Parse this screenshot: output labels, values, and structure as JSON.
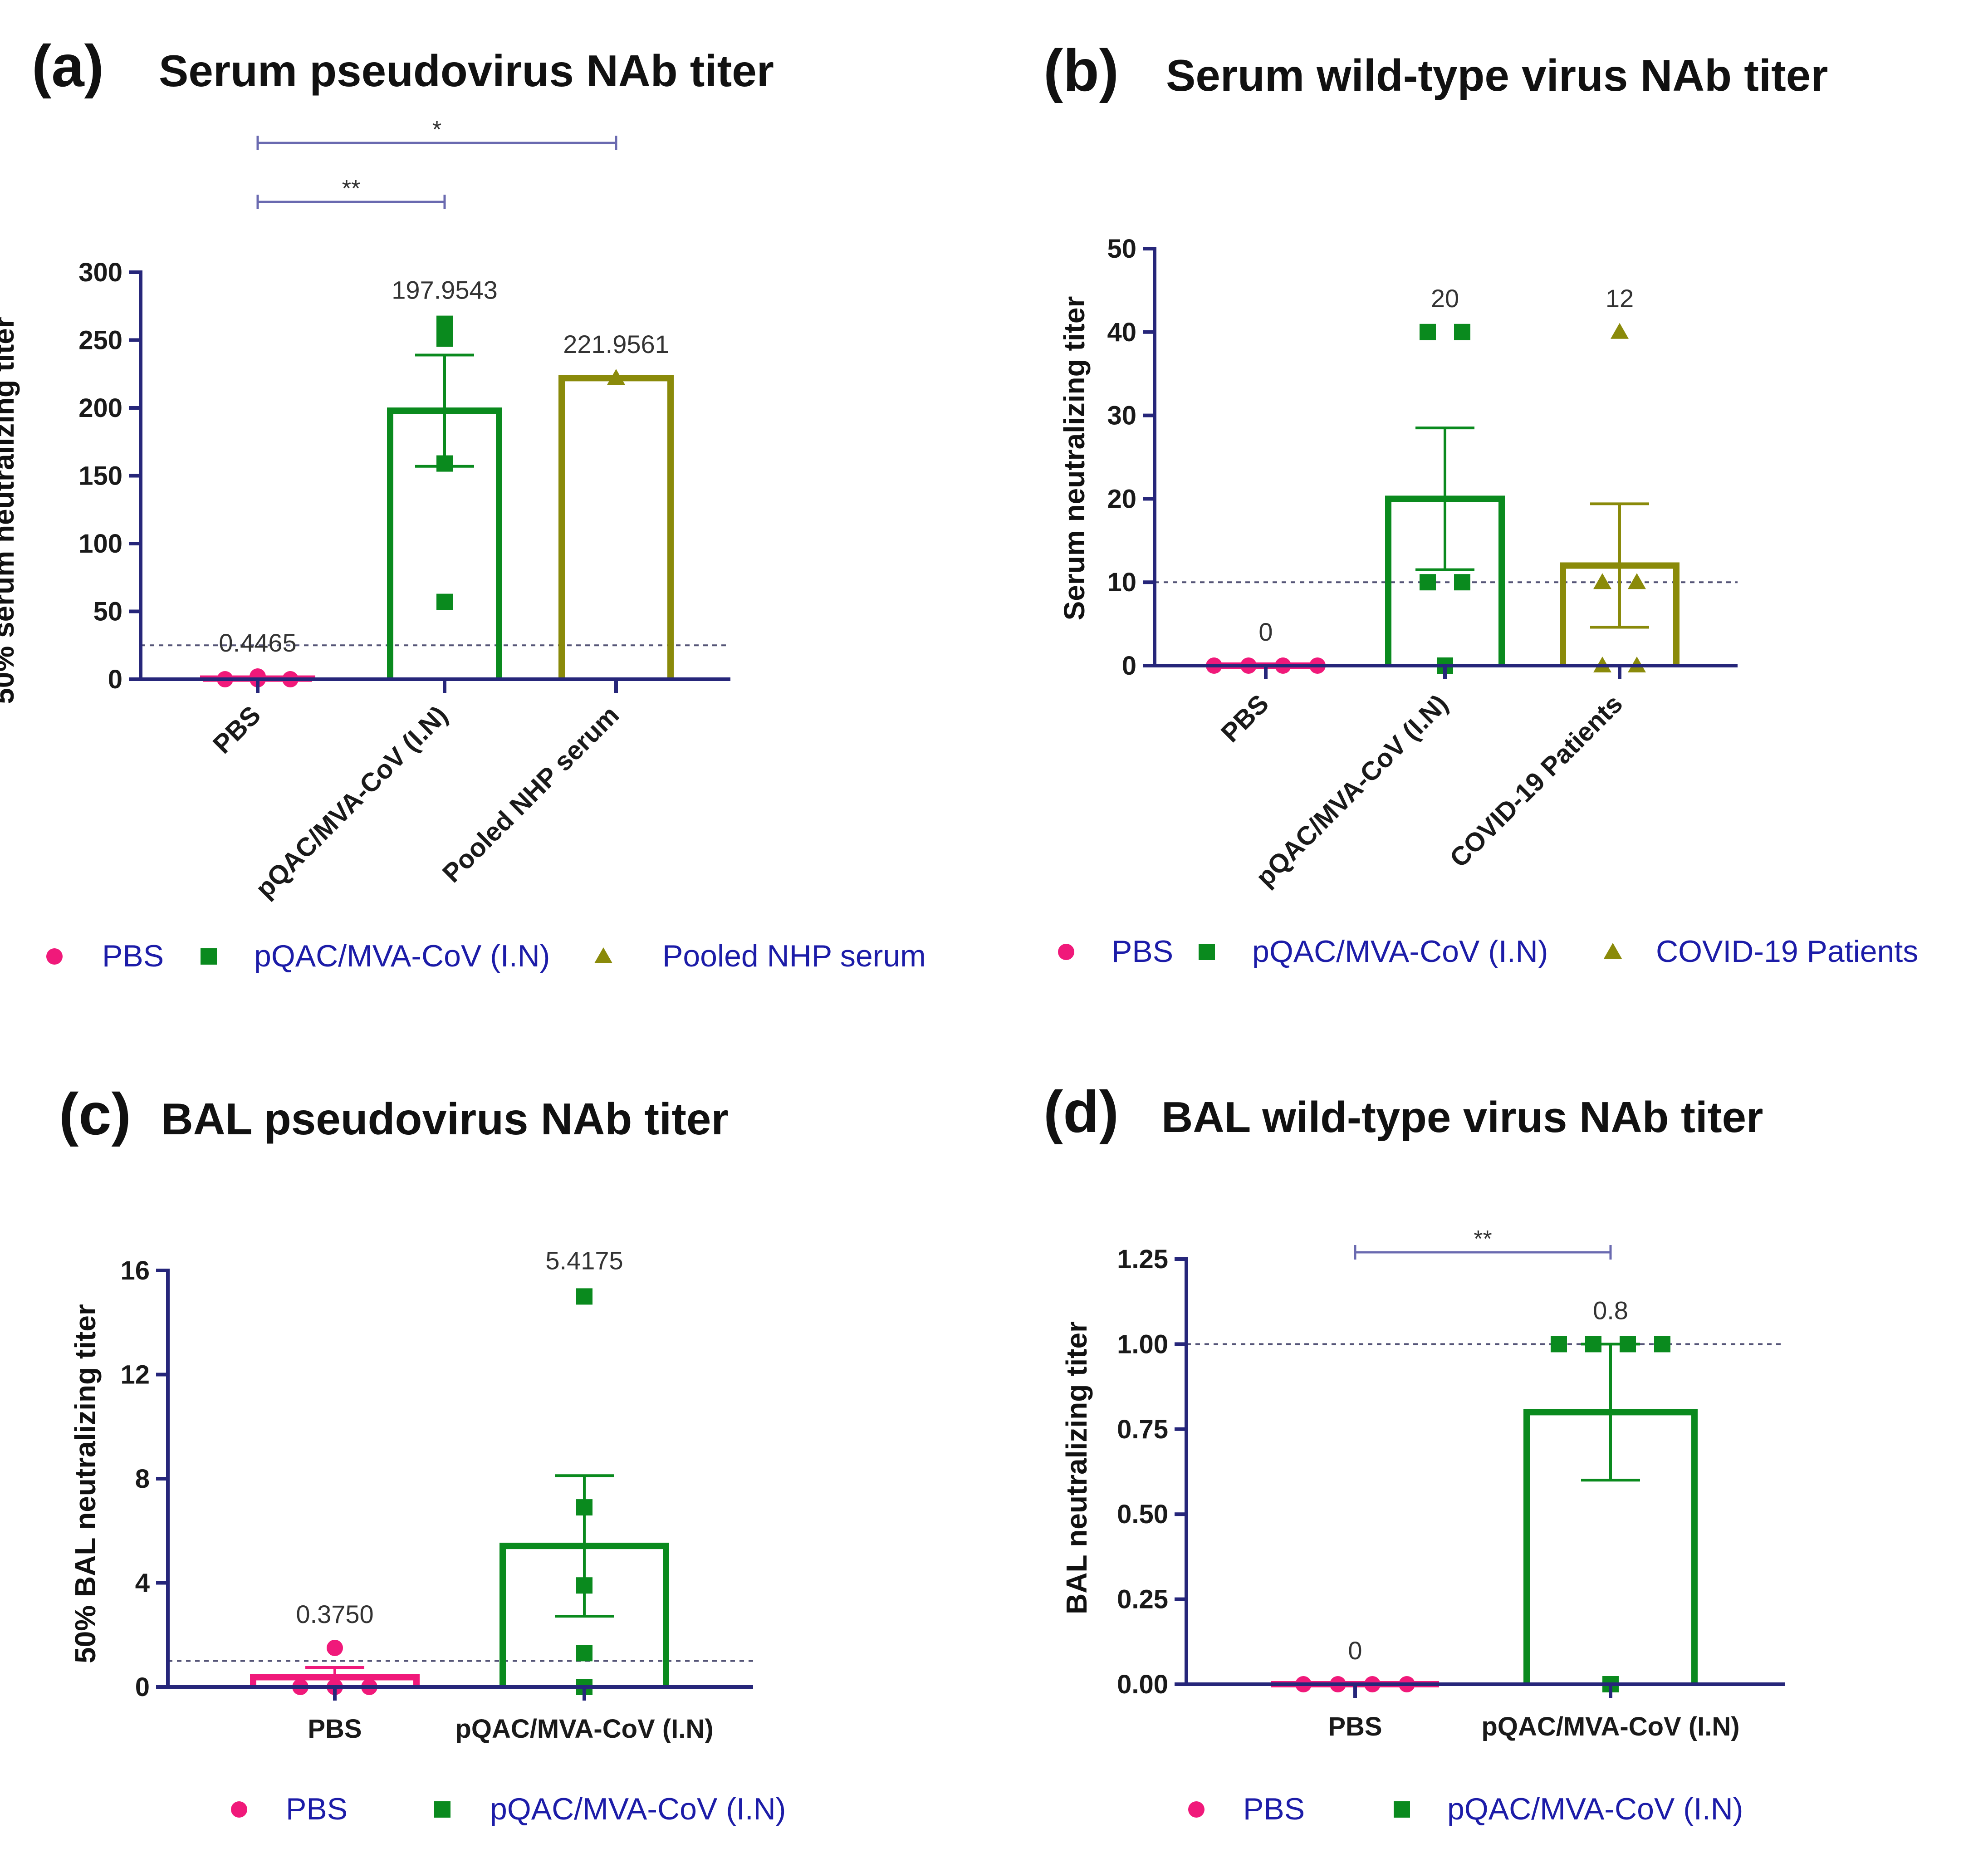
{
  "chart_data": [
    {
      "id": "a",
      "type": "bar",
      "panel_label": "(a)",
      "title": "Serum pseudovirus NAb titer",
      "ylabel": "50% serum neutralizing titer",
      "ylim": [
        0,
        300
      ],
      "yticks": [
        "0",
        "50",
        "100",
        "150",
        "200",
        "250",
        "300"
      ],
      "reference_line": 25,
      "categories": [
        "PBS",
        "pQAC/MVA-CoV (I.N)",
        "Pooled NHP serum"
      ],
      "series": [
        {
          "name": "PBS",
          "color": "#f0197a",
          "marker": "circle",
          "mean": 0.4465,
          "mean_label": "0.4465",
          "sem": 0,
          "points": [
            0,
            2,
            0,
            0
          ]
        },
        {
          "name": "pQAC/MVA-CoV (I.N)",
          "color": "#0a8a1e",
          "marker": "square",
          "mean": 197.9543,
          "mean_label": "197.9543",
          "sem": 41,
          "points": [
            262,
            251,
            259,
            159,
            57
          ]
        },
        {
          "name": "Pooled NHP serum",
          "color": "#8a8a0a",
          "marker": "triangle",
          "mean": 221.9561,
          "mean_label": "221.9561",
          "sem": 0,
          "points": [
            222
          ]
        }
      ],
      "significance": [
        {
          "from": 0,
          "to": 2,
          "label": "*"
        },
        {
          "from": 0,
          "to": 1,
          "label": "**"
        }
      ],
      "legend": [
        "PBS",
        "pQAC/MVA-CoV (I.N)",
        "Pooled NHP serum"
      ]
    },
    {
      "id": "b",
      "type": "bar",
      "panel_label": "(b)",
      "title": "Serum wild-type virus NAb titer",
      "ylabel": "Serum neutralizing titer",
      "ylim": [
        0,
        50
      ],
      "yticks": [
        "0",
        "10",
        "20",
        "30",
        "40",
        "50"
      ],
      "reference_line": 10,
      "categories": [
        "PBS",
        "pQAC/MVA-CoV (I.N)",
        "COVID-19 Patients"
      ],
      "series": [
        {
          "name": "PBS",
          "color": "#f0197a",
          "marker": "circle",
          "mean": 0,
          "mean_label": "0",
          "sem": 0,
          "points": [
            0,
            0,
            0,
            0
          ]
        },
        {
          "name": "pQAC/MVA-CoV (I.N)",
          "color": "#0a8a1e",
          "marker": "square",
          "mean": 20,
          "mean_label": "20",
          "sem": 8.5,
          "points": [
            40,
            40,
            10,
            10,
            0
          ]
        },
        {
          "name": "COVID-19 Patients",
          "color": "#8a8a0a",
          "marker": "triangle",
          "mean": 12,
          "mean_label": "12",
          "sem": 7.4,
          "points": [
            40,
            10,
            10,
            0,
            0
          ]
        }
      ],
      "significance": [],
      "legend": [
        "PBS",
        "pQAC/MVA-CoV (I.N)",
        "COVID-19 Patients"
      ]
    },
    {
      "id": "c",
      "type": "bar",
      "panel_label": "(c)",
      "title": "BAL pseudovirus NAb titer",
      "ylabel": "50% BAL neutralizing titer",
      "ylim": [
        0,
        16
      ],
      "yticks": [
        "0",
        "4",
        "8",
        "12",
        "16"
      ],
      "reference_line": 1,
      "categories": [
        "PBS",
        "pQAC/MVA-CoV (I.N)"
      ],
      "series": [
        {
          "name": "PBS",
          "color": "#f0197a",
          "marker": "circle",
          "mean": 0.375,
          "mean_label": "0.3750",
          "sem": 0.375,
          "points": [
            1.5,
            0,
            0,
            0
          ]
        },
        {
          "name": "pQAC/MVA-CoV (I.N)",
          "color": "#0a8a1e",
          "marker": "square",
          "mean": 5.4175,
          "mean_label": "5.4175",
          "sem": 2.7,
          "points": [
            15,
            6.9,
            3.9,
            1.3,
            0
          ]
        }
      ],
      "significance": [],
      "legend": [
        "PBS",
        "pQAC/MVA-CoV (I.N)"
      ]
    },
    {
      "id": "d",
      "type": "bar",
      "panel_label": "(d)",
      "title": "BAL wild-type virus NAb titer",
      "ylabel": "BAL neutralizing titer",
      "ylim": [
        0,
        1.25
      ],
      "yticks": [
        "0.00",
        "0.25",
        "0.50",
        "0.75",
        "1.00",
        "1.25"
      ],
      "reference_line": 1,
      "categories": [
        "PBS",
        "pQAC/MVA-CoV (I.N)"
      ],
      "series": [
        {
          "name": "PBS",
          "color": "#f0197a",
          "marker": "circle",
          "mean": 0,
          "mean_label": "0",
          "sem": 0,
          "points": [
            0,
            0,
            0,
            0
          ]
        },
        {
          "name": "pQAC/MVA-CoV (I.N)",
          "color": "#0a8a1e",
          "marker": "square",
          "mean": 0.8,
          "mean_label": "0.8",
          "sem": 0.2,
          "points": [
            1,
            1,
            1,
            1,
            0
          ]
        }
      ],
      "significance": [
        {
          "from": 0,
          "to": 1,
          "label": "**"
        }
      ],
      "legend": [
        "PBS",
        "pQAC/MVA-CoV (I.N)"
      ]
    }
  ]
}
